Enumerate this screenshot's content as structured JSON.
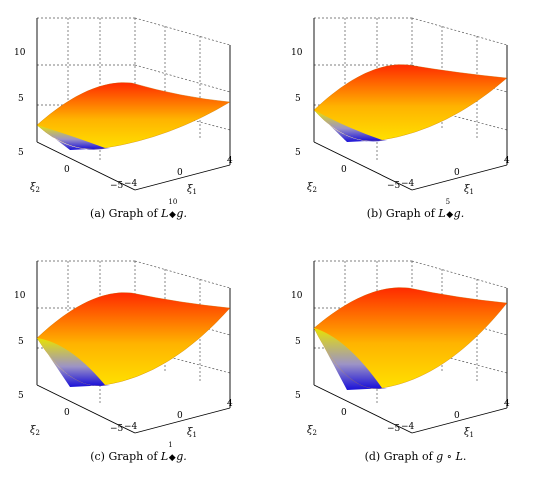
{
  "figure": {
    "panels": [
      {
        "id": "a",
        "caption": "(a) Graph of L",
        "sup": "10",
        "tail": "g."
      },
      {
        "id": "b",
        "caption": "(b) Graph of L",
        "sup": "5",
        "tail": "g."
      },
      {
        "id": "c",
        "caption": "(c) Graph of L",
        "sup": "1",
        "tail": "g."
      },
      {
        "id": "d",
        "caption": "(d) Graph of ",
        "sup": "",
        "tail": "g ∘ L."
      }
    ],
    "axes": {
      "z_ticks": [
        "10",
        "5"
      ],
      "xi2_ticks": [
        "5",
        "0",
        "−5"
      ],
      "xi1_ticks": [
        "−4",
        "0",
        "4"
      ],
      "xi1_label": "ξ1",
      "xi2_label": "ξ2"
    }
  }
}
